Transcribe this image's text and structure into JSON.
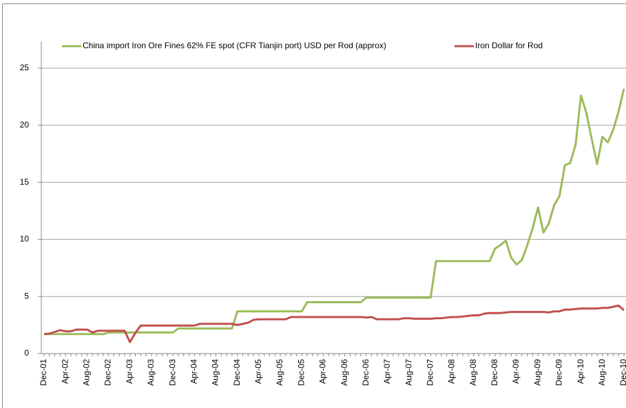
{
  "chart_data": {
    "type": "line",
    "categories": [
      "Dec-01",
      null,
      null,
      null,
      "Apr-02",
      null,
      null,
      null,
      "Aug-02",
      null,
      null,
      null,
      "Dec-02",
      null,
      null,
      null,
      "Apr-03",
      null,
      null,
      null,
      "Aug-03",
      null,
      null,
      null,
      "Dec-03",
      null,
      null,
      null,
      "Apr-04",
      null,
      null,
      null,
      "Aug-04",
      null,
      null,
      null,
      "Dec-04",
      null,
      null,
      null,
      "Apr-05",
      null,
      null,
      null,
      "Aug-05",
      null,
      null,
      null,
      "Dec-05",
      null,
      null,
      null,
      "Apr-06",
      null,
      null,
      null,
      "Aug-06",
      null,
      null,
      null,
      "Dec-06",
      null,
      null,
      null,
      "Apr-07",
      null,
      null,
      null,
      "Aug-07",
      null,
      null,
      null,
      "Dec-07",
      null,
      null,
      null,
      "Apr-08",
      null,
      null,
      null,
      "Aug-08",
      null,
      null,
      null,
      "Dec-08",
      null,
      null,
      null,
      "Apr-09",
      null,
      null,
      null,
      "Aug-09",
      null,
      null,
      null,
      "Dec-09",
      null,
      null,
      null,
      "Apr-10",
      null,
      null,
      null,
      "Aug-10",
      null,
      null,
      null,
      "Dec-10"
    ],
    "series": [
      {
        "name": "China import Iron Ore Fines 62% FE spot (CFR Tianjin port) USD per Rod (approx)",
        "color": "#9bbb59",
        "values": [
          1.7,
          1.7,
          1.7,
          1.7,
          1.7,
          1.7,
          1.7,
          1.7,
          1.7,
          1.7,
          1.7,
          1.7,
          1.85,
          1.85,
          1.85,
          1.85,
          1.85,
          1.85,
          1.85,
          1.85,
          1.85,
          1.85,
          1.85,
          1.85,
          1.85,
          2.2,
          2.2,
          2.2,
          2.2,
          2.2,
          2.2,
          2.2,
          2.2,
          2.2,
          2.2,
          2.2,
          3.7,
          3.7,
          3.7,
          3.7,
          3.7,
          3.7,
          3.7,
          3.7,
          3.7,
          3.7,
          3.7,
          3.7,
          3.7,
          4.5,
          4.5,
          4.5,
          4.5,
          4.5,
          4.5,
          4.5,
          4.5,
          4.5,
          4.5,
          4.5,
          4.9,
          4.9,
          4.9,
          4.9,
          4.9,
          4.9,
          4.9,
          4.9,
          4.9,
          4.9,
          4.9,
          4.9,
          4.9,
          8.1,
          8.1,
          8.1,
          8.1,
          8.1,
          8.1,
          8.1,
          8.1,
          8.1,
          8.1,
          8.1,
          9.2,
          9.5,
          9.9,
          8.4,
          7.8,
          8.2,
          9.5,
          11.0,
          12.8,
          10.6,
          11.4,
          13.0,
          13.8,
          16.5,
          16.7,
          18.3,
          22.6,
          21.1,
          18.8,
          16.6,
          19.0,
          18.5,
          19.6,
          21.2,
          23.2
        ]
      },
      {
        "name": "Iron Dollar for Rod",
        "color": "#c0504d",
        "values": [
          1.7,
          1.75,
          1.9,
          2.05,
          1.95,
          1.95,
          2.1,
          2.1,
          2.1,
          1.85,
          2.0,
          2.0,
          2.0,
          2.0,
          2.0,
          2.0,
          1.0,
          1.8,
          2.45,
          2.45,
          2.45,
          2.45,
          2.45,
          2.45,
          2.45,
          2.45,
          2.45,
          2.45,
          2.45,
          2.6,
          2.6,
          2.6,
          2.6,
          2.6,
          2.6,
          2.6,
          2.5,
          2.6,
          2.7,
          2.95,
          3.0,
          3.0,
          3.0,
          3.0,
          3.0,
          3.0,
          3.2,
          3.2,
          3.2,
          3.2,
          3.2,
          3.2,
          3.2,
          3.2,
          3.2,
          3.2,
          3.2,
          3.2,
          3.2,
          3.2,
          3.15,
          3.2,
          3.0,
          3.0,
          3.0,
          3.0,
          3.0,
          3.1,
          3.1,
          3.05,
          3.05,
          3.05,
          3.05,
          3.1,
          3.1,
          3.15,
          3.2,
          3.2,
          3.25,
          3.3,
          3.35,
          3.35,
          3.5,
          3.55,
          3.55,
          3.55,
          3.6,
          3.65,
          3.65,
          3.65,
          3.65,
          3.65,
          3.65,
          3.65,
          3.6,
          3.7,
          3.7,
          3.85,
          3.85,
          3.9,
          3.95,
          3.95,
          3.95,
          3.95,
          4.0,
          4.0,
          4.1,
          4.2,
          3.8
        ]
      }
    ],
    "ylim": [
      0,
      25
    ],
    "yticks": [
      0,
      5,
      10,
      15,
      20,
      25
    ],
    "grid": true,
    "legend": "top"
  }
}
